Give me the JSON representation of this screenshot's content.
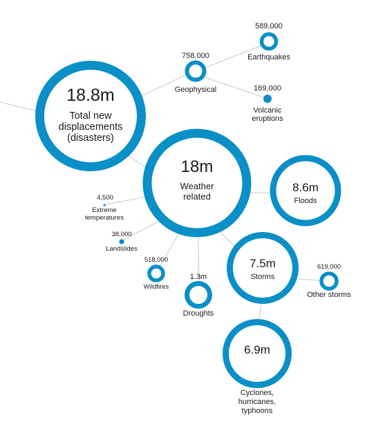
{
  "nodes": {
    "total": {
      "value": "18.8m",
      "label": [
        "Total new",
        "displacements",
        "(disasters)"
      ]
    },
    "geophysical": {
      "value": "758,000",
      "label": [
        "Geophysical"
      ]
    },
    "earthquakes": {
      "value": "589,000",
      "label": [
        "Earthquakes"
      ]
    },
    "volcanic": {
      "value": "169,000",
      "label": [
        "Volcanic",
        "eruptions"
      ]
    },
    "weather": {
      "value": "18m",
      "label": [
        "Weather",
        "related"
      ]
    },
    "floods": {
      "value": "8.6m",
      "label": [
        "Floods"
      ]
    },
    "extreme": {
      "value": "4,500",
      "label": [
        "Extreme",
        "temperatures"
      ]
    },
    "landslides": {
      "value": "38,000",
      "label": [
        "Landslides"
      ]
    },
    "wildfires": {
      "value": "518,000",
      "label": [
        "Wildfires"
      ]
    },
    "droughts": {
      "value": "1.3m",
      "label": [
        "Droughts"
      ]
    },
    "storms": {
      "value": "7.5m",
      "label": [
        "Storms"
      ]
    },
    "other_storms": {
      "value": "619,000",
      "label": [
        "Other storms"
      ]
    },
    "cyclones": {
      "value": "6.9m",
      "label": [
        "Cyclones,",
        "hurricanes,",
        "typhoons"
      ]
    }
  },
  "colors": {
    "ring": "#0a8fc7",
    "link": "#c8c8c8"
  }
}
